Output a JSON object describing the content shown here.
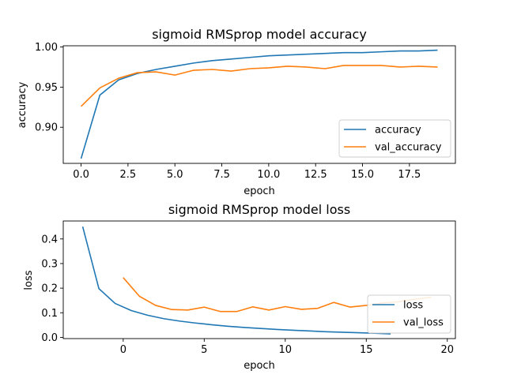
{
  "chart_data": [
    {
      "type": "line",
      "title": "sigmoid RMSprop model accuracy",
      "xlabel": "epoch",
      "ylabel": "accuracy",
      "xlim": [
        -0.95,
        19.95
      ],
      "ylim": [
        0.855,
        1.0015
      ],
      "xticks": [
        0.0,
        2.5,
        5.0,
        7.5,
        10.0,
        12.5,
        15.0,
        17.5
      ],
      "xtick_labels": [
        "0.0",
        "2.5",
        "5.0",
        "7.5",
        "10.0",
        "12.5",
        "15.0",
        "17.5"
      ],
      "yticks": [
        0.9,
        0.95,
        1.0
      ],
      "ytick_labels": [
        "0.90",
        "0.95",
        "1.00"
      ],
      "grid": false,
      "legend_position": "lower-right",
      "series": [
        {
          "name": "accuracy",
          "color": "#1f77b4",
          "x": [
            0,
            1,
            2,
            3,
            4,
            5,
            6,
            7,
            8,
            9,
            10,
            11,
            12,
            13,
            14,
            15,
            16,
            17,
            18,
            19
          ],
          "y": [
            0.861,
            0.94,
            0.959,
            0.967,
            0.972,
            0.976,
            0.98,
            0.983,
            0.985,
            0.987,
            0.989,
            0.99,
            0.991,
            0.992,
            0.993,
            0.993,
            0.994,
            0.995,
            0.995,
            0.996
          ]
        },
        {
          "name": "val_accuracy",
          "color": "#ff7f0e",
          "x": [
            0,
            1,
            2,
            3,
            4,
            5,
            6,
            7,
            8,
            9,
            10,
            11,
            12,
            13,
            14,
            15,
            16,
            17,
            18,
            19
          ],
          "y": [
            0.926,
            0.949,
            0.961,
            0.968,
            0.969,
            0.965,
            0.971,
            0.972,
            0.97,
            0.973,
            0.974,
            0.976,
            0.975,
            0.973,
            0.977,
            0.977,
            0.977,
            0.975,
            0.976,
            0.975
          ]
        }
      ]
    },
    {
      "type": "line",
      "title": "sigmoid RMSprop model loss",
      "xlabel": "epoch",
      "ylabel": "loss",
      "xlim": [
        -3.7,
        20.5
      ],
      "ylim": [
        -0.005,
        0.473
      ],
      "xticks": [
        0,
        5,
        10,
        15,
        20
      ],
      "xtick_labels": [
        "0",
        "5",
        "10",
        "15",
        "20"
      ],
      "yticks": [
        0.0,
        0.1,
        0.2,
        0.3,
        0.4
      ],
      "ytick_labels": [
        "0.0",
        "0.1",
        "0.2",
        "0.3",
        "0.4"
      ],
      "grid": false,
      "legend_position": "lower-right",
      "series": [
        {
          "name": "loss",
          "color": "#1f77b4",
          "x": [
            -2.5,
            -1.5,
            -0.5,
            0.5,
            1.5,
            2.5,
            3.5,
            4.5,
            5.5,
            6.5,
            7.5,
            8.5,
            9.5,
            10.5,
            11.5,
            12.5,
            13.5,
            14.5,
            15.5,
            16.5
          ],
          "y": [
            0.45,
            0.198,
            0.138,
            0.109,
            0.09,
            0.076,
            0.066,
            0.058,
            0.051,
            0.045,
            0.04,
            0.036,
            0.032,
            0.029,
            0.026,
            0.023,
            0.021,
            0.019,
            0.017,
            0.014
          ]
        },
        {
          "name": "val_loss",
          "color": "#ff7f0e",
          "x": [
            0,
            1,
            2,
            3,
            4,
            5,
            6,
            7,
            8,
            9,
            10,
            11,
            12,
            13,
            14,
            15,
            16,
            17,
            18,
            19
          ],
          "y": [
            0.243,
            0.167,
            0.13,
            0.113,
            0.111,
            0.123,
            0.105,
            0.105,
            0.124,
            0.111,
            0.125,
            0.114,
            0.118,
            0.142,
            0.123,
            0.13,
            0.14,
            0.145,
            0.155,
            0.163
          ]
        }
      ]
    }
  ]
}
